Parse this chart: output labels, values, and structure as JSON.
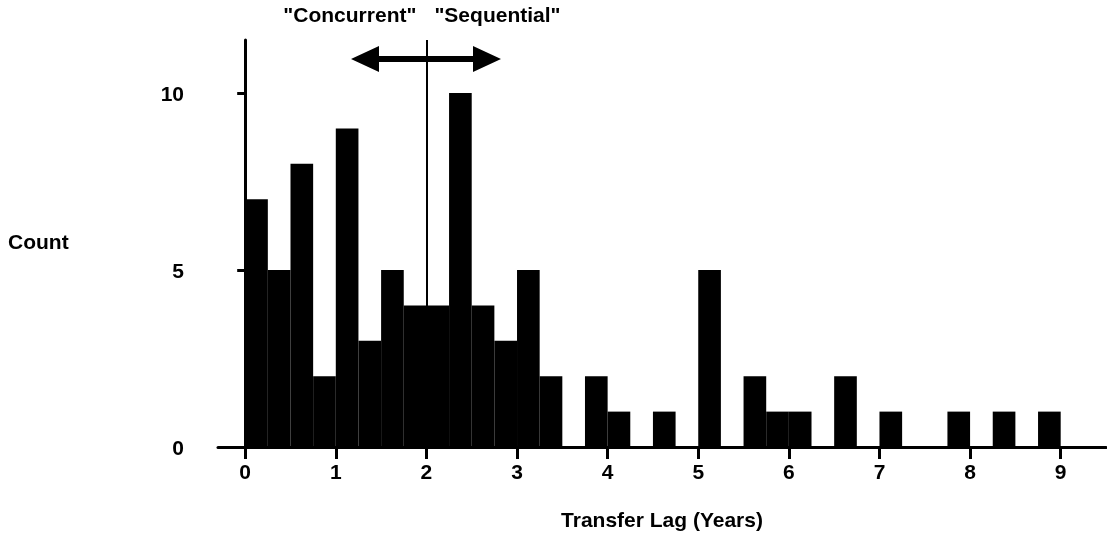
{
  "chart_data": {
    "type": "histogram",
    "bins": [
      0,
      0.25,
      0.5,
      0.75,
      1,
      1.25,
      1.5,
      1.75,
      2,
      2.25,
      2.5,
      2.75,
      3,
      3.25,
      3.5,
      3.75,
      4,
      4.25,
      4.5,
      4.75,
      5,
      5.25,
      5.5,
      5.75,
      6,
      6.25,
      6.5,
      6.75,
      7,
      7.25,
      7.5,
      7.75,
      8,
      8.25,
      8.5,
      8.75,
      9
    ],
    "values": [
      7,
      5,
      8,
      2,
      9,
      3,
      5,
      4,
      4,
      10,
      4,
      3,
      5,
      2,
      0,
      2,
      1,
      0,
      1,
      0,
      5,
      0,
      2,
      1,
      1,
      0,
      2,
      0,
      1,
      0,
      0,
      1,
      0,
      1,
      0,
      1
    ],
    "color": "#000000",
    "xlabel": "Transfer Lag (Years)",
    "ylabel": "Count",
    "xlim": [
      -0.3,
      9.5
    ],
    "xticks": [
      0,
      1,
      2,
      3,
      4,
      5,
      6,
      7,
      8,
      9
    ],
    "ylim": [
      0,
      11.5
    ],
    "yticks": [
      0,
      5,
      10
    ],
    "grid": false,
    "ref_lines": [
      {
        "axis": "x",
        "value": 2,
        "color": "#000000"
      }
    ],
    "annotations": [
      "\"Concurrent\"",
      "\"Sequential\""
    ]
  }
}
